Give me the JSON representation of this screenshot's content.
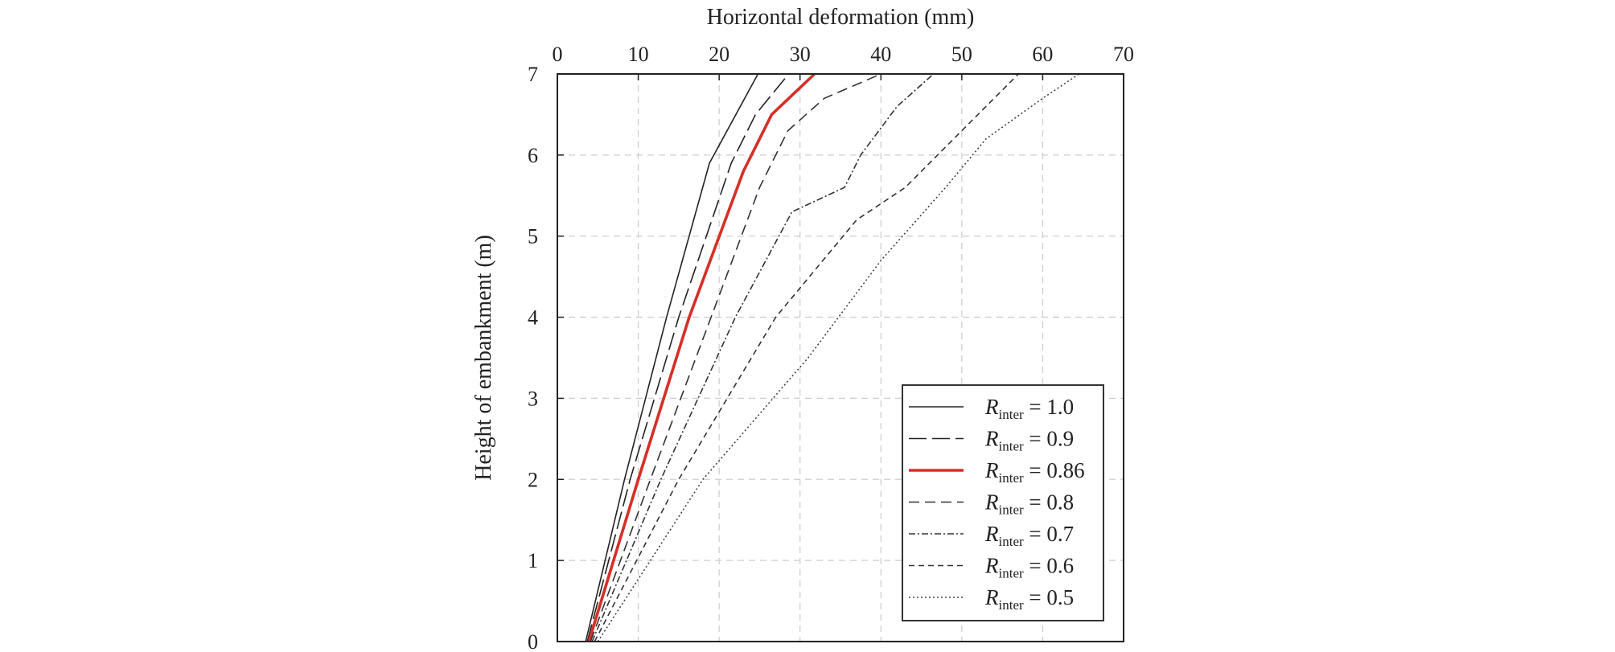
{
  "chart_data": {
    "type": "line",
    "xlabel": "Horizontal deformation (mm)",
    "ylabel": "Height of embankment (m)",
    "xlim": [
      0,
      70
    ],
    "ylim": [
      0,
      7
    ],
    "xticks": [
      "0",
      "10",
      "20",
      "30",
      "40",
      "50",
      "60",
      "70"
    ],
    "yticks": [
      "0",
      "1",
      "2",
      "3",
      "4",
      "5",
      "6",
      "7"
    ],
    "grid": true,
    "x_axis_position": "top",
    "legend_position": "bottom-right",
    "series": [
      {
        "name": "R_inter = 1.0",
        "legend": {
          "symbol": "R",
          "subscript": "inter",
          "rest": " = 1.0"
        },
        "color": "#222222",
        "dash": "",
        "width": 1.6,
        "points": [
          [
            3.5,
            0
          ],
          [
            8.3,
            2
          ],
          [
            13.5,
            4
          ],
          [
            18.8,
            5.9
          ],
          [
            24.8,
            7
          ]
        ]
      },
      {
        "name": "R_inter = 0.9",
        "legend": {
          "symbol": "R",
          "subscript": "inter",
          "rest": " = 0.9"
        },
        "color": "#222222",
        "dash": "22 7",
        "width": 1.6,
        "points": [
          [
            3.7,
            0
          ],
          [
            9.0,
            2
          ],
          [
            15.0,
            4
          ],
          [
            21.5,
            5.9
          ],
          [
            24.5,
            6.5
          ],
          [
            28.6,
            7
          ]
        ]
      },
      {
        "name": "R_inter = 0.86",
        "legend": {
          "symbol": "R",
          "subscript": "inter",
          "rest": " = 0.86"
        },
        "color": "#d62f27",
        "dash": "",
        "width": 3.6,
        "points": [
          [
            3.9,
            0
          ],
          [
            10.0,
            2
          ],
          [
            16.3,
            4
          ],
          [
            23.0,
            5.8
          ],
          [
            26.5,
            6.5
          ],
          [
            31.8,
            7
          ]
        ]
      },
      {
        "name": "R_inter = 0.8",
        "legend": {
          "symbol": "R",
          "subscript": "inter",
          "rest": " = 0.8"
        },
        "color": "#333333",
        "dash": "13 7",
        "width": 1.6,
        "points": [
          [
            4.1,
            0
          ],
          [
            11.5,
            2
          ],
          [
            19.0,
            4
          ],
          [
            25.0,
            5.6
          ],
          [
            28.5,
            6.3
          ],
          [
            33.0,
            6.7
          ],
          [
            40.0,
            7
          ]
        ]
      },
      {
        "name": "R_inter = 0.7",
        "legend": {
          "symbol": "R",
          "subscript": "inter",
          "rest": " = 0.7"
        },
        "color": "#333333",
        "dash": "8 3 2 3",
        "width": 1.6,
        "points": [
          [
            4.3,
            0
          ],
          [
            12.8,
            2
          ],
          [
            22.0,
            4
          ],
          [
            29.0,
            5.3
          ],
          [
            35.5,
            5.6
          ],
          [
            37.5,
            6.0
          ],
          [
            42.0,
            6.6
          ],
          [
            46.5,
            7
          ]
        ]
      },
      {
        "name": "R_inter = 0.6",
        "legend": {
          "symbol": "R",
          "subscript": "inter",
          "rest": " = 0.6"
        },
        "color": "#333333",
        "dash": "7 5",
        "width": 1.6,
        "points": [
          [
            4.6,
            0
          ],
          [
            15.0,
            2
          ],
          [
            27.0,
            4
          ],
          [
            37.0,
            5.2
          ],
          [
            43.0,
            5.6
          ],
          [
            47.0,
            6.0
          ],
          [
            52.0,
            6.5
          ],
          [
            57.0,
            7
          ]
        ]
      },
      {
        "name": "R_inter = 0.5",
        "legend": {
          "symbol": "R",
          "subscript": "inter",
          "rest": " = 0.5"
        },
        "color": "#444444",
        "dash": "2 3",
        "width": 1.6,
        "points": [
          [
            5.0,
            0
          ],
          [
            18.0,
            2
          ],
          [
            31.0,
            3.5
          ],
          [
            40.0,
            4.7
          ],
          [
            48.0,
            5.6
          ],
          [
            53.0,
            6.2
          ],
          [
            60.0,
            6.7
          ],
          [
            64.5,
            7
          ]
        ]
      }
    ]
  }
}
